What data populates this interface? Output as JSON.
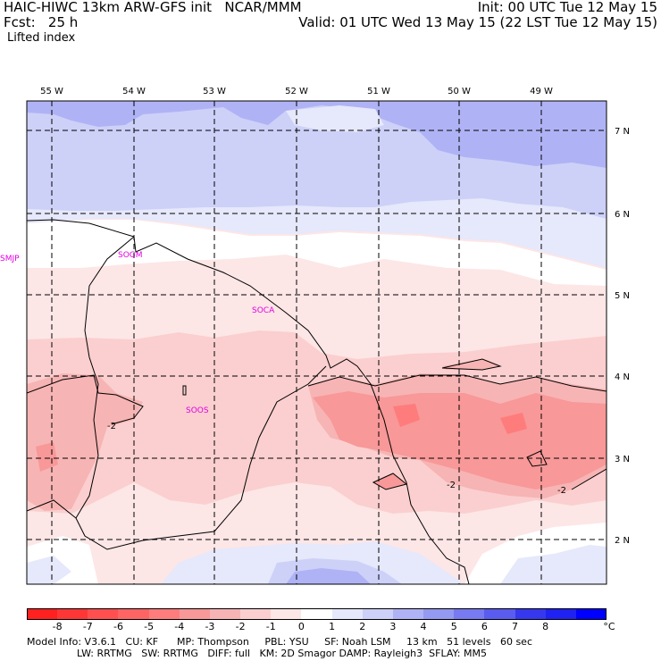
{
  "header": {
    "left_line1": "HAIC-HIWC 13km ARW-GFS init   NCAR/MMM",
    "left_line2": "Fcst:   25 h",
    "right_line1": "Init: 00 UTC Tue 12 May 15",
    "right_line2": "Valid: 01 UTC Wed 13 May 15 (22 LST Tue 12 May 15)",
    "field": "Lifted index"
  },
  "map": {
    "lon_labels": [
      "55 W",
      "54 W",
      "53 W",
      "52 W",
      "51 W",
      "50 W",
      "49 W"
    ],
    "lat_labels": [
      "7 N",
      "6 N",
      "5 N",
      "4 N",
      "3 N",
      "2 N"
    ],
    "stations": [
      "SMJP",
      "SOGM",
      "SOCA",
      "SOOS"
    ],
    "contour_labels": [
      "-2",
      "-2",
      "-2"
    ]
  },
  "colorbar": {
    "unit": "°C",
    "tick_labels": [
      "-8",
      "-7",
      "-6",
      "-5",
      "-4",
      "-3",
      "-2",
      "-1",
      "0",
      "1",
      "2",
      "3",
      "4",
      "5",
      "6",
      "7",
      "8"
    ],
    "colors": [
      "#ff2020",
      "#ff3636",
      "#ff4f4f",
      "#ff6464",
      "#ff7c7c",
      "#f89898",
      "#f7b4b4",
      "#fbcfcf",
      "#fde6e6",
      "#ffffff",
      "#e6e8fb",
      "#cdd1f8",
      "#afb3f5",
      "#9499f2",
      "#777af0",
      "#5a5cef",
      "#3638ee",
      "#1f22f0",
      "#0000ff"
    ]
  },
  "footer": {
    "line1": "Model Info: V3.6.1   CU: KF      MP: Thompson     PBL: YSU     SF: Noah LSM     13 km   51 levels   60 sec",
    "line2": "                LW: RRTMG   SW: RRTMG   DIFF: full   KM: 2D Smagor DAMP: Rayleigh3  SFLAY: MM5"
  }
}
